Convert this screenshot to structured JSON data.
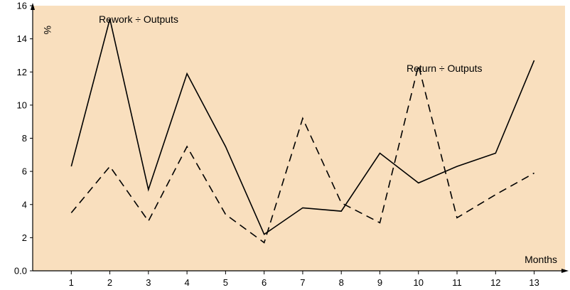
{
  "chart_data": {
    "type": "line",
    "x": [
      1,
      2,
      3,
      4,
      5,
      6,
      7,
      8,
      9,
      10,
      11,
      12,
      13
    ],
    "xlabel": "Months",
    "ylabel": "%",
    "xlim": [
      0,
      13.8
    ],
    "ylim": [
      0,
      16
    ],
    "x_ticks": [
      "1",
      "2",
      "3",
      "4",
      "5",
      "6",
      "7",
      "8",
      "9",
      "10",
      "11",
      "12",
      "13"
    ],
    "y_ticks": [
      "0.0",
      "2",
      "4",
      "6",
      "8",
      "10",
      "12",
      "14",
      "16"
    ],
    "y_tick_values": [
      0,
      2,
      4,
      6,
      8,
      10,
      12,
      14,
      16
    ],
    "grid": false,
    "plot_background": "#f9dfbe",
    "series": [
      {
        "name": "Rework ÷ Outputs",
        "style": "solid",
        "color": "#000000",
        "values": [
          6.3,
          15.2,
          4.9,
          11.9,
          7.5,
          2.2,
          3.8,
          3.6,
          7.1,
          5.3,
          6.3,
          7.1,
          12.7
        ]
      },
      {
        "name": "Return ÷ Outputs",
        "style": "dashed",
        "color": "#000000",
        "values": [
          3.5,
          6.3,
          3.0,
          7.5,
          3.4,
          1.7,
          9.2,
          4.1,
          2.9,
          12.4,
          3.2,
          4.6,
          5.9
        ]
      }
    ]
  }
}
